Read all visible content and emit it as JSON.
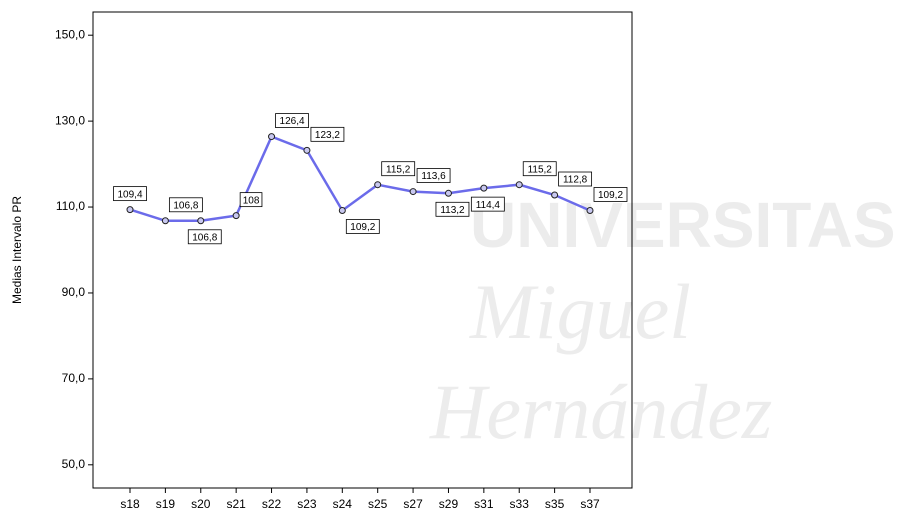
{
  "chart_data": {
    "type": "line",
    "y_label": "Medias Intervalo PR",
    "categories": [
      "s18",
      "s19",
      "s20",
      "s21",
      "s22",
      "s23",
      "s24",
      "s25",
      "s27",
      "s29",
      "s31",
      "s33",
      "s35",
      "s37"
    ],
    "series": [
      {
        "name": null,
        "color": "#6b6bea",
        "values": [
          109.4,
          106.8,
          106.8,
          108,
          126.4,
          123.2,
          109.2,
          115.2,
          113.6,
          113.2,
          114.4,
          115.2,
          112.8,
          109.2
        ],
        "value_labels": [
          "109,4",
          "106,8",
          "106,8",
          "108",
          "126,4",
          "123,2",
          "109,2",
          "115,2",
          "113,6",
          "113,2",
          "114,4",
          "115,2",
          "112,8",
          "109,2"
        ]
      }
    ],
    "ylim": [
      44.6,
      155.4
    ],
    "yticks": [
      {
        "value": 50,
        "label": "50,0"
      },
      {
        "value": 70,
        "label": "70,0"
      },
      {
        "value": 90,
        "label": "90,0"
      },
      {
        "value": 110,
        "label": "110,0"
      },
      {
        "value": 130,
        "label": "130,0"
      },
      {
        "value": 150,
        "label": "150,0"
      }
    ],
    "watermark": [
      "UNIVERSITAS",
      "Miguel",
      "Hernández"
    ]
  }
}
